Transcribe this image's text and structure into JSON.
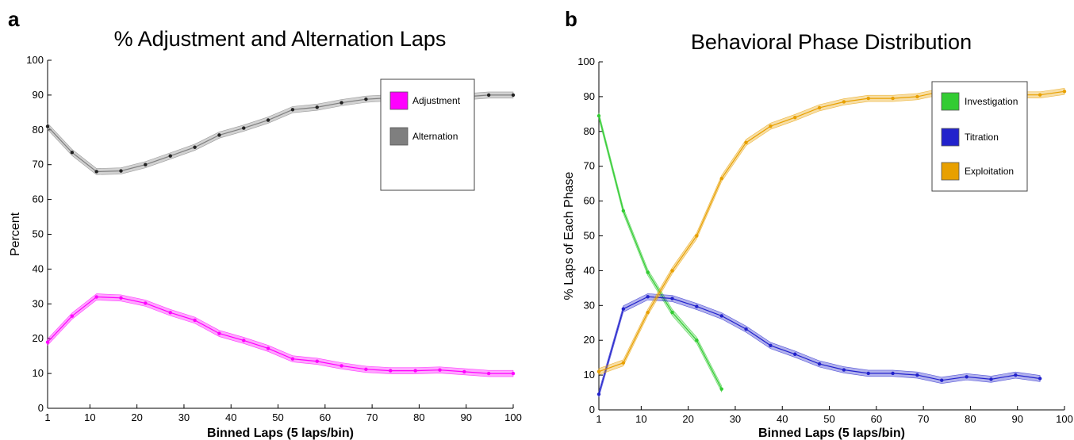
{
  "chart_data": [
    {
      "panel_label": "a",
      "type": "line",
      "title": "% Adjustment and Alternation Laps",
      "xlabel": "Binned Laps (5 laps/bin)",
      "ylabel": "Percent",
      "xlim": [
        1,
        100
      ],
      "ylim": [
        0,
        100
      ],
      "xticks": [
        1,
        10,
        20,
        30,
        40,
        50,
        60,
        70,
        80,
        90,
        100
      ],
      "yticks": [
        0,
        10,
        20,
        30,
        40,
        50,
        60,
        70,
        80,
        90,
        100
      ],
      "grid": false,
      "legend_position": "top-right",
      "x": [
        1,
        6.2,
        11.4,
        16.6,
        21.8,
        27.1,
        32.3,
        37.5,
        42.7,
        47.9,
        53.1,
        58.3,
        63.5,
        68.7,
        73.9,
        79.2,
        84.4,
        89.6,
        94.8,
        100
      ],
      "series": [
        {
          "name": "Adjustment",
          "color": "#ff00ff",
          "values": [
            19,
            26.5,
            32,
            31.7,
            30.2,
            27.5,
            25.3,
            21.5,
            19.5,
            17.2,
            14.2,
            13.5,
            12.2,
            11.2,
            10.8,
            10.8,
            11,
            10.5,
            10,
            10
          ],
          "band": 0.9
        },
        {
          "name": "Alternation",
          "color": "#7f7f7f",
          "values": [
            81,
            73.5,
            68,
            68.2,
            70,
            72.5,
            75,
            78.5,
            80.5,
            82.8,
            85.8,
            86.5,
            87.8,
            88.8,
            89.2,
            89.2,
            89,
            89.5,
            90,
            90
          ],
          "band": 0.9
        }
      ]
    },
    {
      "panel_label": "b",
      "type": "line",
      "title": "Behavioral Phase Distribution",
      "xlabel": "Binned Laps (5 laps/bin)",
      "ylabel": "% Laps of Each Phase",
      "xlim": [
        1,
        100
      ],
      "ylim": [
        0,
        100
      ],
      "xticks": [
        1,
        10,
        20,
        30,
        40,
        50,
        60,
        70,
        80,
        90,
        100
      ],
      "yticks": [
        0,
        10,
        20,
        30,
        40,
        50,
        60,
        70,
        80,
        90,
        100
      ],
      "grid": false,
      "legend_position": "top-right",
      "series": [
        {
          "name": "Investigation",
          "color": "#33cc33",
          "x": [
            1,
            6.2,
            11.4,
            16.6,
            21.8,
            27.1
          ],
          "values": [
            84.5,
            57.2,
            39.5,
            28,
            20,
            6
          ],
          "band": 0.9
        },
        {
          "name": "Titration",
          "color": "#2222cc",
          "x": [
            1,
            6.2,
            11.4,
            16.6,
            21.8,
            27.1,
            32.3,
            37.5,
            42.7,
            47.9,
            53.1,
            58.3,
            63.5,
            68.7,
            73.9,
            79.2,
            84.4,
            89.6,
            94.8
          ],
          "values": [
            4.5,
            29,
            32.5,
            32,
            29.7,
            27,
            23.2,
            18.5,
            16,
            13.2,
            11.5,
            10.5,
            10.5,
            10,
            8.5,
            9.5,
            8.8,
            10,
            9
          ],
          "band": 0.9
        },
        {
          "name": "Exploitation",
          "color": "#e8a000",
          "x": [
            1,
            6.2,
            11.4,
            16.6,
            21.8,
            27.1,
            32.3,
            37.5,
            42.7,
            47.9,
            53.1,
            58.3,
            63.5,
            68.7,
            73.9,
            79.2,
            84.4,
            89.6,
            94.8,
            100
          ],
          "values": [
            11,
            13.5,
            28,
            40,
            50,
            66.5,
            76.8,
            81.5,
            84,
            86.8,
            88.5,
            89.5,
            89.5,
            90,
            91.5,
            91.2,
            91,
            90.5,
            90.5,
            91.5
          ],
          "band": 0.9
        }
      ]
    }
  ]
}
